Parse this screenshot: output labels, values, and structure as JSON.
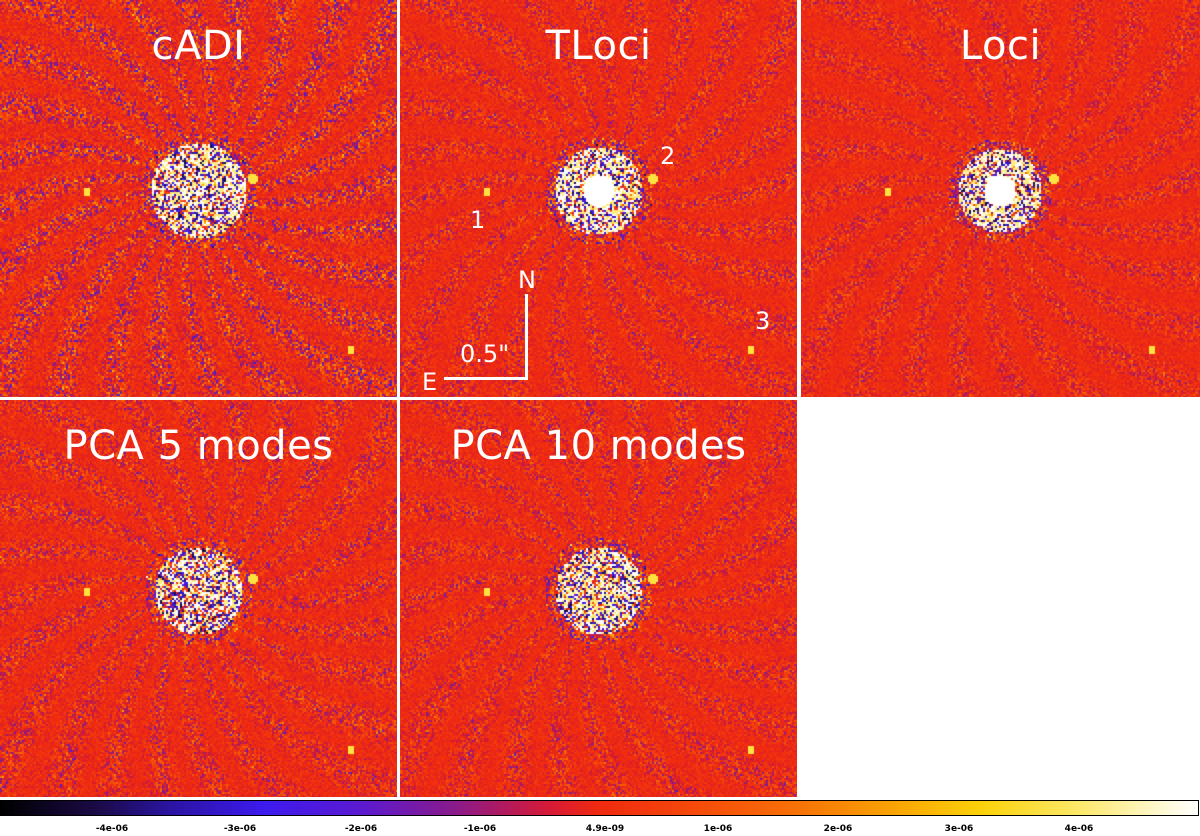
{
  "panels": [
    {
      "title": "cADI",
      "method": "cADI"
    },
    {
      "title": "TLoci",
      "method": "TLoci"
    },
    {
      "title": "Loci",
      "method": "Loci"
    },
    {
      "title": "PCA 5 modes",
      "method": "PCA5"
    },
    {
      "title": "PCA 10 modes",
      "method": "PCA10"
    }
  ],
  "annotations": {
    "labels": [
      "1",
      "2",
      "3"
    ],
    "north_label": "N",
    "east_label": "E",
    "scale_label": "0.5\""
  },
  "colorbar": {
    "ticks": [
      "-4e-06",
      "-3e-06",
      "-2e-06",
      "-1e-06",
      "4.9e-09",
      "1e-06",
      "2e-06",
      "3e-06",
      "4e-06"
    ],
    "colors": [
      "#000000",
      "#3d1aee",
      "#f02a10",
      "#f9a004",
      "#ffffff"
    ]
  }
}
